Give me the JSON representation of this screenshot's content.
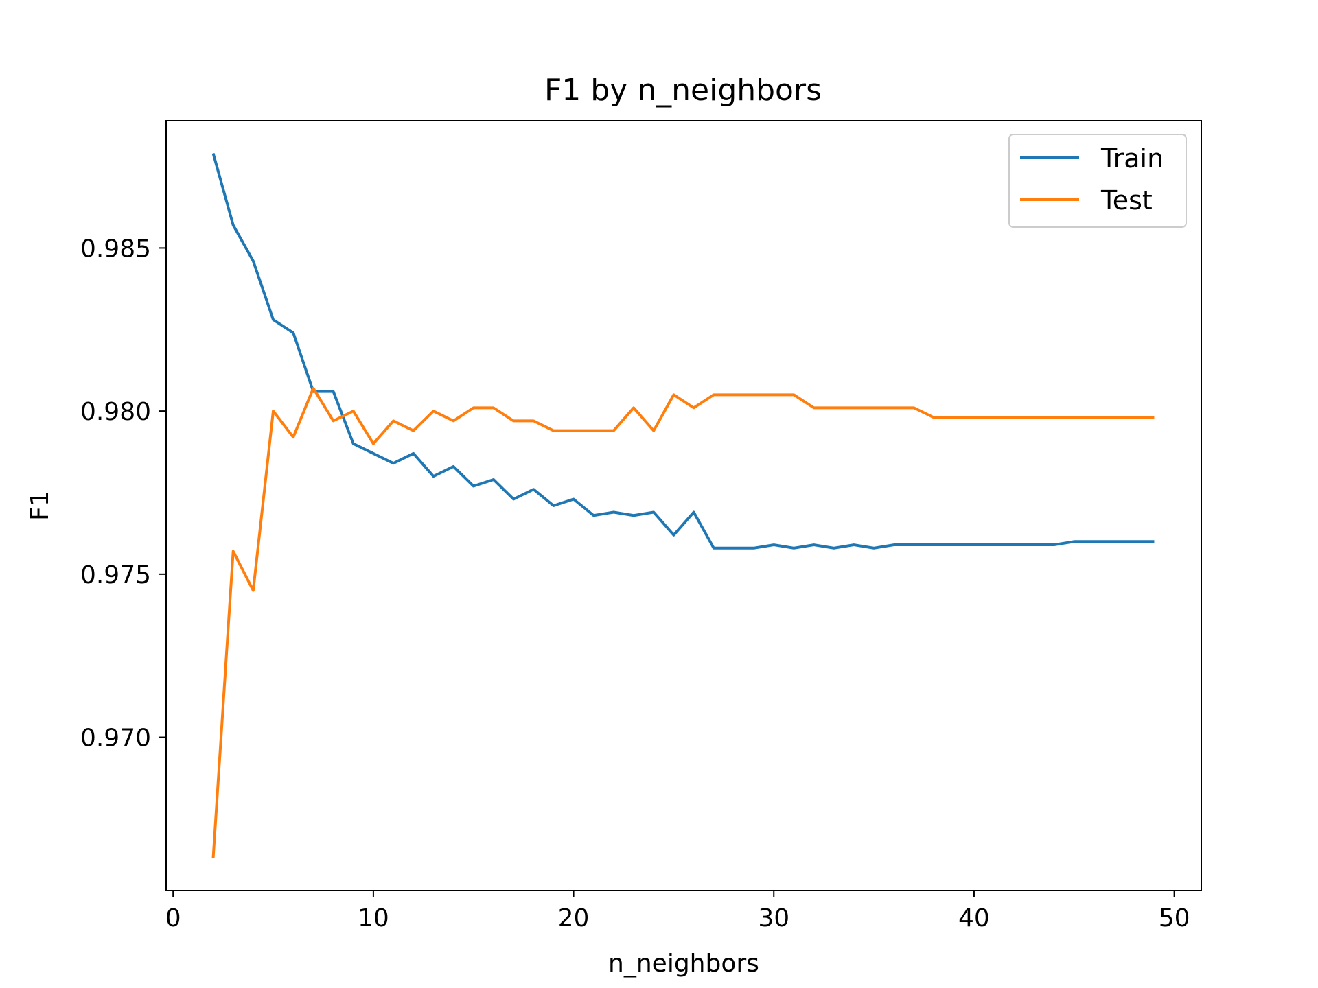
{
  "chart_data": {
    "type": "line",
    "title": "F1 by n_neighbors",
    "xlabel": "n_neighbors",
    "ylabel": "F1",
    "xlim": [
      -0.35,
      51.35
    ],
    "ylim": [
      0.9653,
      0.9889
    ],
    "xticks": [
      0,
      10,
      20,
      30,
      40,
      50
    ],
    "xtick_labels": [
      "0",
      "10",
      "20",
      "30",
      "40",
      "50"
    ],
    "yticks": [
      0.97,
      0.975,
      0.98,
      0.985
    ],
    "ytick_labels": [
      "0.970",
      "0.975",
      "0.980",
      "0.985"
    ],
    "grid": false,
    "legend_position": "top-right",
    "x": [
      2,
      3,
      4,
      5,
      6,
      7,
      8,
      9,
      10,
      11,
      12,
      13,
      14,
      15,
      16,
      17,
      18,
      19,
      20,
      21,
      22,
      23,
      24,
      25,
      26,
      27,
      28,
      29,
      30,
      31,
      32,
      33,
      34,
      35,
      36,
      37,
      38,
      39,
      40,
      41,
      42,
      43,
      44,
      45,
      46,
      47,
      48,
      49
    ],
    "series": [
      {
        "name": "Train",
        "color": "#1f77b4",
        "values": [
          0.9879,
          0.9857,
          0.9846,
          0.9828,
          0.9824,
          0.9806,
          0.9806,
          0.979,
          0.9787,
          0.9784,
          0.9787,
          0.978,
          0.9783,
          0.9777,
          0.9779,
          0.9773,
          0.9776,
          0.9771,
          0.9773,
          0.9768,
          0.9769,
          0.9768,
          0.9769,
          0.9762,
          0.9769,
          0.9758,
          0.9758,
          0.9758,
          0.9759,
          0.9758,
          0.9759,
          0.9758,
          0.9759,
          0.9758,
          0.9759,
          0.9759,
          0.9759,
          0.9759,
          0.9759,
          0.9759,
          0.9759,
          0.9759,
          0.9759,
          0.976,
          0.976,
          0.976,
          0.976,
          0.976
        ]
      },
      {
        "name": "Test",
        "color": "#ff7f0e",
        "values": [
          0.9663,
          0.9757,
          0.9745,
          0.98,
          0.9792,
          0.9807,
          0.9797,
          0.98,
          0.979,
          0.9797,
          0.9794,
          0.98,
          0.9797,
          0.9801,
          0.9801,
          0.9797,
          0.9797,
          0.9794,
          0.9794,
          0.9794,
          0.9794,
          0.9801,
          0.9794,
          0.9805,
          0.9801,
          0.9805,
          0.9805,
          0.9805,
          0.9805,
          0.9805,
          0.9801,
          0.9801,
          0.9801,
          0.9801,
          0.9801,
          0.9801,
          0.9798,
          0.9798,
          0.9798,
          0.9798,
          0.9798,
          0.9798,
          0.9798,
          0.9798,
          0.9798,
          0.9798,
          0.9798,
          0.9798
        ]
      }
    ]
  }
}
